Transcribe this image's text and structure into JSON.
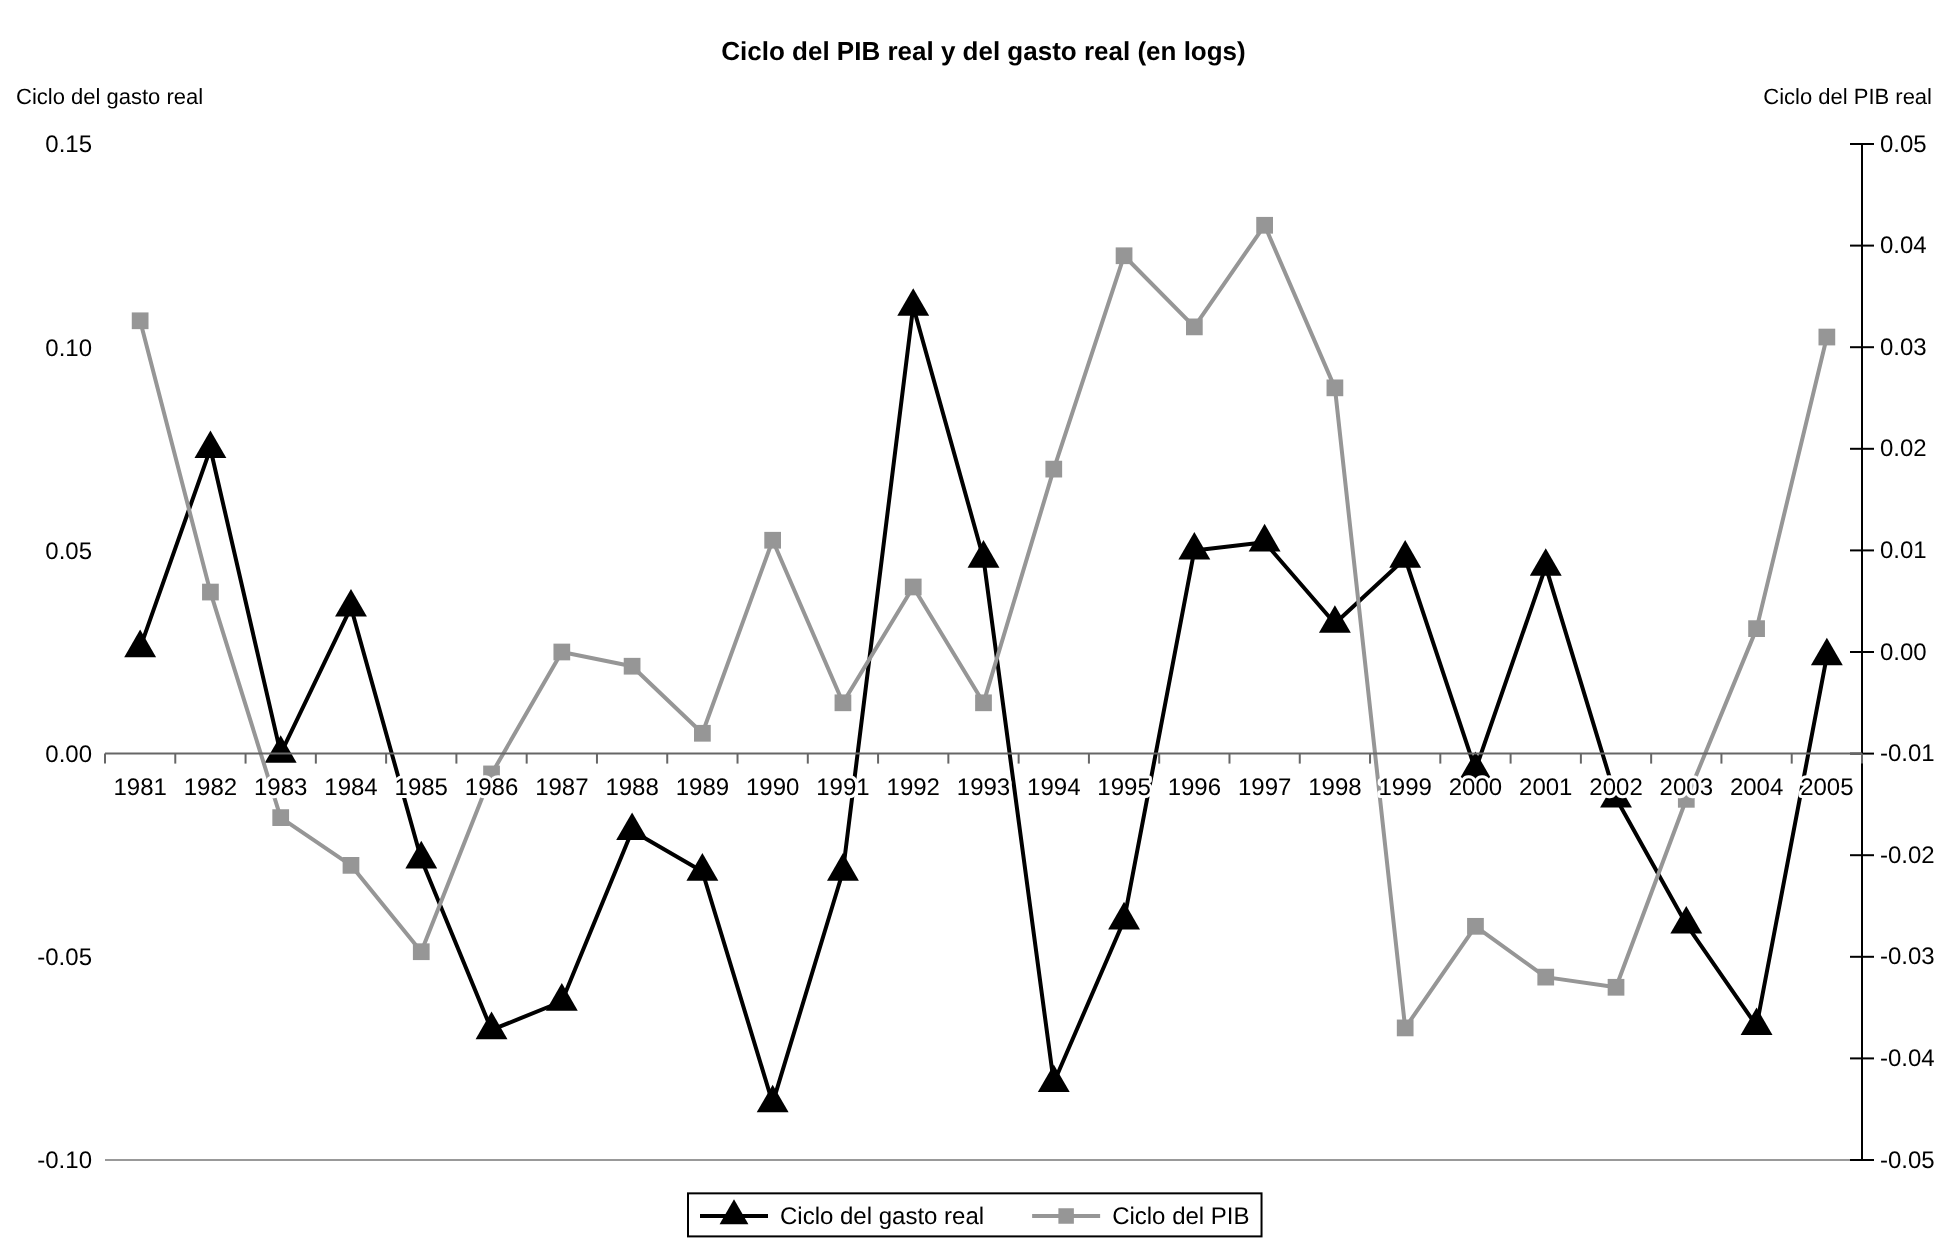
{
  "chart_data": {
    "type": "line",
    "title": "Ciclo del PIB real y del gasto real (en logs)",
    "ylabel": "Ciclo del gasto real",
    "y2label": "Ciclo del PIB real",
    "categories": [
      "1981",
      "1982",
      "1983",
      "1984",
      "1985",
      "1986",
      "1987",
      "1988",
      "1989",
      "1990",
      "1991",
      "1992",
      "1993",
      "1994",
      "1995",
      "1996",
      "1997",
      "1998",
      "1999",
      "2000",
      "2001",
      "2002",
      "2003",
      "2004",
      "2005"
    ],
    "series": [
      {
        "name": "Ciclo del gasto real",
        "color": "#000000",
        "marker": "triangle",
        "values": [
          0.026,
          0.075,
          0.0,
          0.036,
          -0.026,
          -0.068,
          -0.061,
          -0.019,
          -0.029,
          -0.086,
          -0.029,
          0.11,
          0.048,
          -0.081,
          -0.041,
          0.05,
          0.052,
          0.032,
          0.048,
          -0.004,
          0.046,
          -0.011,
          -0.042,
          -0.067,
          0.024
        ]
      },
      {
        "name": "Ciclo del PIB",
        "color": "#969696",
        "marker": "square",
        "axis": "y2",
        "values": [
          0.0326,
          0.0059,
          -0.0163,
          -0.021,
          -0.0295,
          -0.012,
          0.0,
          -0.0014,
          -0.008,
          0.011,
          -0.005,
          0.0064,
          -0.005,
          0.018,
          0.039,
          0.032,
          0.042,
          0.026,
          -0.037,
          -0.027,
          -0.032,
          -0.033,
          -0.0145,
          0.0023,
          0.031
        ]
      }
    ],
    "ylim": [
      -0.1,
      0.15
    ],
    "yticks": [
      {
        "value": -0.1,
        "label": "-0.10"
      },
      -0.05,
      {
        "value": 0,
        "label": "0.00"
      },
      0.05,
      {
        "value": 0.1,
        "label": "0.10"
      },
      0.15
    ],
    "y2lim": [
      -0.05,
      0.05
    ],
    "y2ticks": [
      -0.05,
      -0.04,
      -0.03,
      -0.02,
      -0.01,
      {
        "value": 0,
        "label": "0.00"
      },
      0.01,
      0.02,
      0.03,
      0.04,
      0.05
    ],
    "grid": false,
    "legend": "bottom",
    "line_style": "solid"
  }
}
